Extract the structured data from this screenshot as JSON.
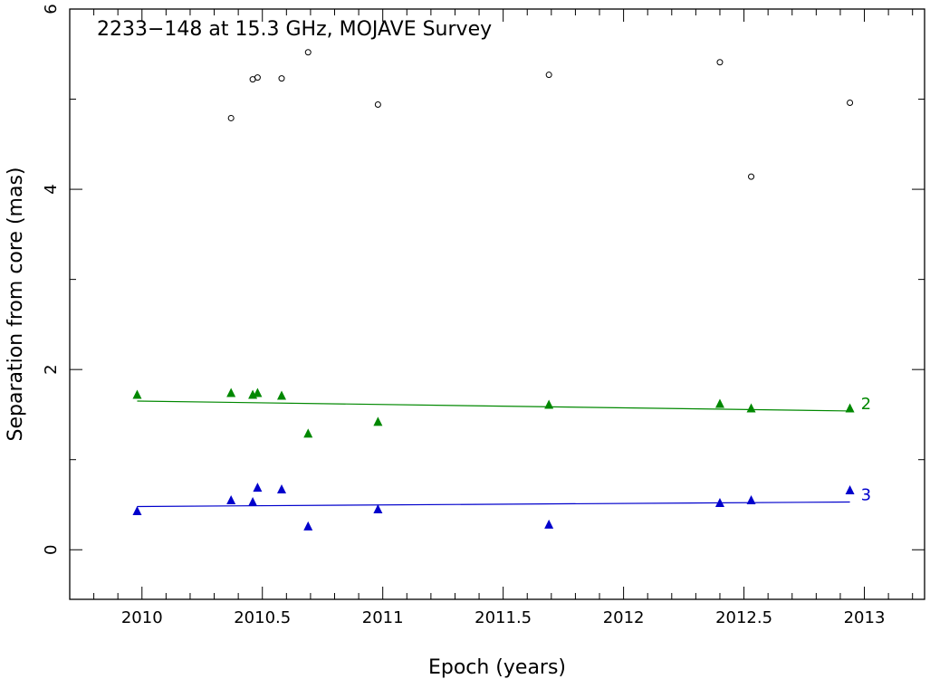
{
  "chart_data": {
    "type": "scatter",
    "title": "2233−148 at 15.3 GHz, MOJAVE Survey",
    "xlabel": "Epoch (years)",
    "ylabel": "Separation from core (mas)",
    "xlim": [
      2009.7,
      2013.25
    ],
    "ylim": [
      -0.55,
      6.0
    ],
    "xticks": [
      {
        "value": 2010,
        "label": "2010"
      },
      {
        "value": 2010.5,
        "label": "2010.5"
      },
      {
        "value": 2011,
        "label": "2011"
      },
      {
        "value": 2011.5,
        "label": "2011.5"
      },
      {
        "value": 2012,
        "label": "2012"
      },
      {
        "value": 2012.5,
        "label": "2012.5"
      },
      {
        "value": 2013,
        "label": "2013"
      }
    ],
    "yticks": [
      {
        "value": 0,
        "label": "0"
      },
      {
        "value": 2,
        "label": "2"
      },
      {
        "value": 4,
        "label": "4"
      },
      {
        "value": 6,
        "label": "6"
      }
    ],
    "grid": false,
    "series": [
      {
        "marker": "open-circle",
        "color": "#000000",
        "points": [
          [
            2010.37,
            4.79
          ],
          [
            2010.46,
            5.22
          ],
          [
            2010.48,
            5.24
          ],
          [
            2010.58,
            5.23
          ],
          [
            2010.69,
            5.52
          ],
          [
            2010.98,
            4.94
          ],
          [
            2011.69,
            5.27
          ],
          [
            2012.4,
            5.41
          ],
          [
            2012.53,
            4.14
          ],
          [
            2012.94,
            4.96
          ]
        ]
      },
      {
        "name": "2",
        "marker": "filled-triangle",
        "color": "#008800",
        "points": [
          [
            2009.98,
            1.72
          ],
          [
            2010.37,
            1.74
          ],
          [
            2010.46,
            1.72
          ],
          [
            2010.48,
            1.74
          ],
          [
            2010.58,
            1.71
          ],
          [
            2010.69,
            1.29
          ],
          [
            2010.98,
            1.42
          ],
          [
            2011.69,
            1.61
          ],
          [
            2012.4,
            1.62
          ],
          [
            2012.53,
            1.57
          ],
          [
            2012.94,
            1.57
          ]
        ],
        "fit": [
          [
            2009.98,
            1.65
          ],
          [
            2012.94,
            1.54
          ]
        ]
      },
      {
        "name": "3",
        "marker": "filled-triangle",
        "color": "#0000cc",
        "points": [
          [
            2009.98,
            0.43
          ],
          [
            2010.37,
            0.55
          ],
          [
            2010.46,
            0.53
          ],
          [
            2010.48,
            0.69
          ],
          [
            2010.58,
            0.67
          ],
          [
            2010.69,
            0.26
          ],
          [
            2010.98,
            0.45
          ],
          [
            2011.69,
            0.28
          ],
          [
            2012.4,
            0.52
          ],
          [
            2012.53,
            0.55
          ],
          [
            2012.94,
            0.66
          ]
        ],
        "fit": [
          [
            2009.98,
            0.48
          ],
          [
            2012.94,
            0.53
          ]
        ]
      }
    ]
  }
}
